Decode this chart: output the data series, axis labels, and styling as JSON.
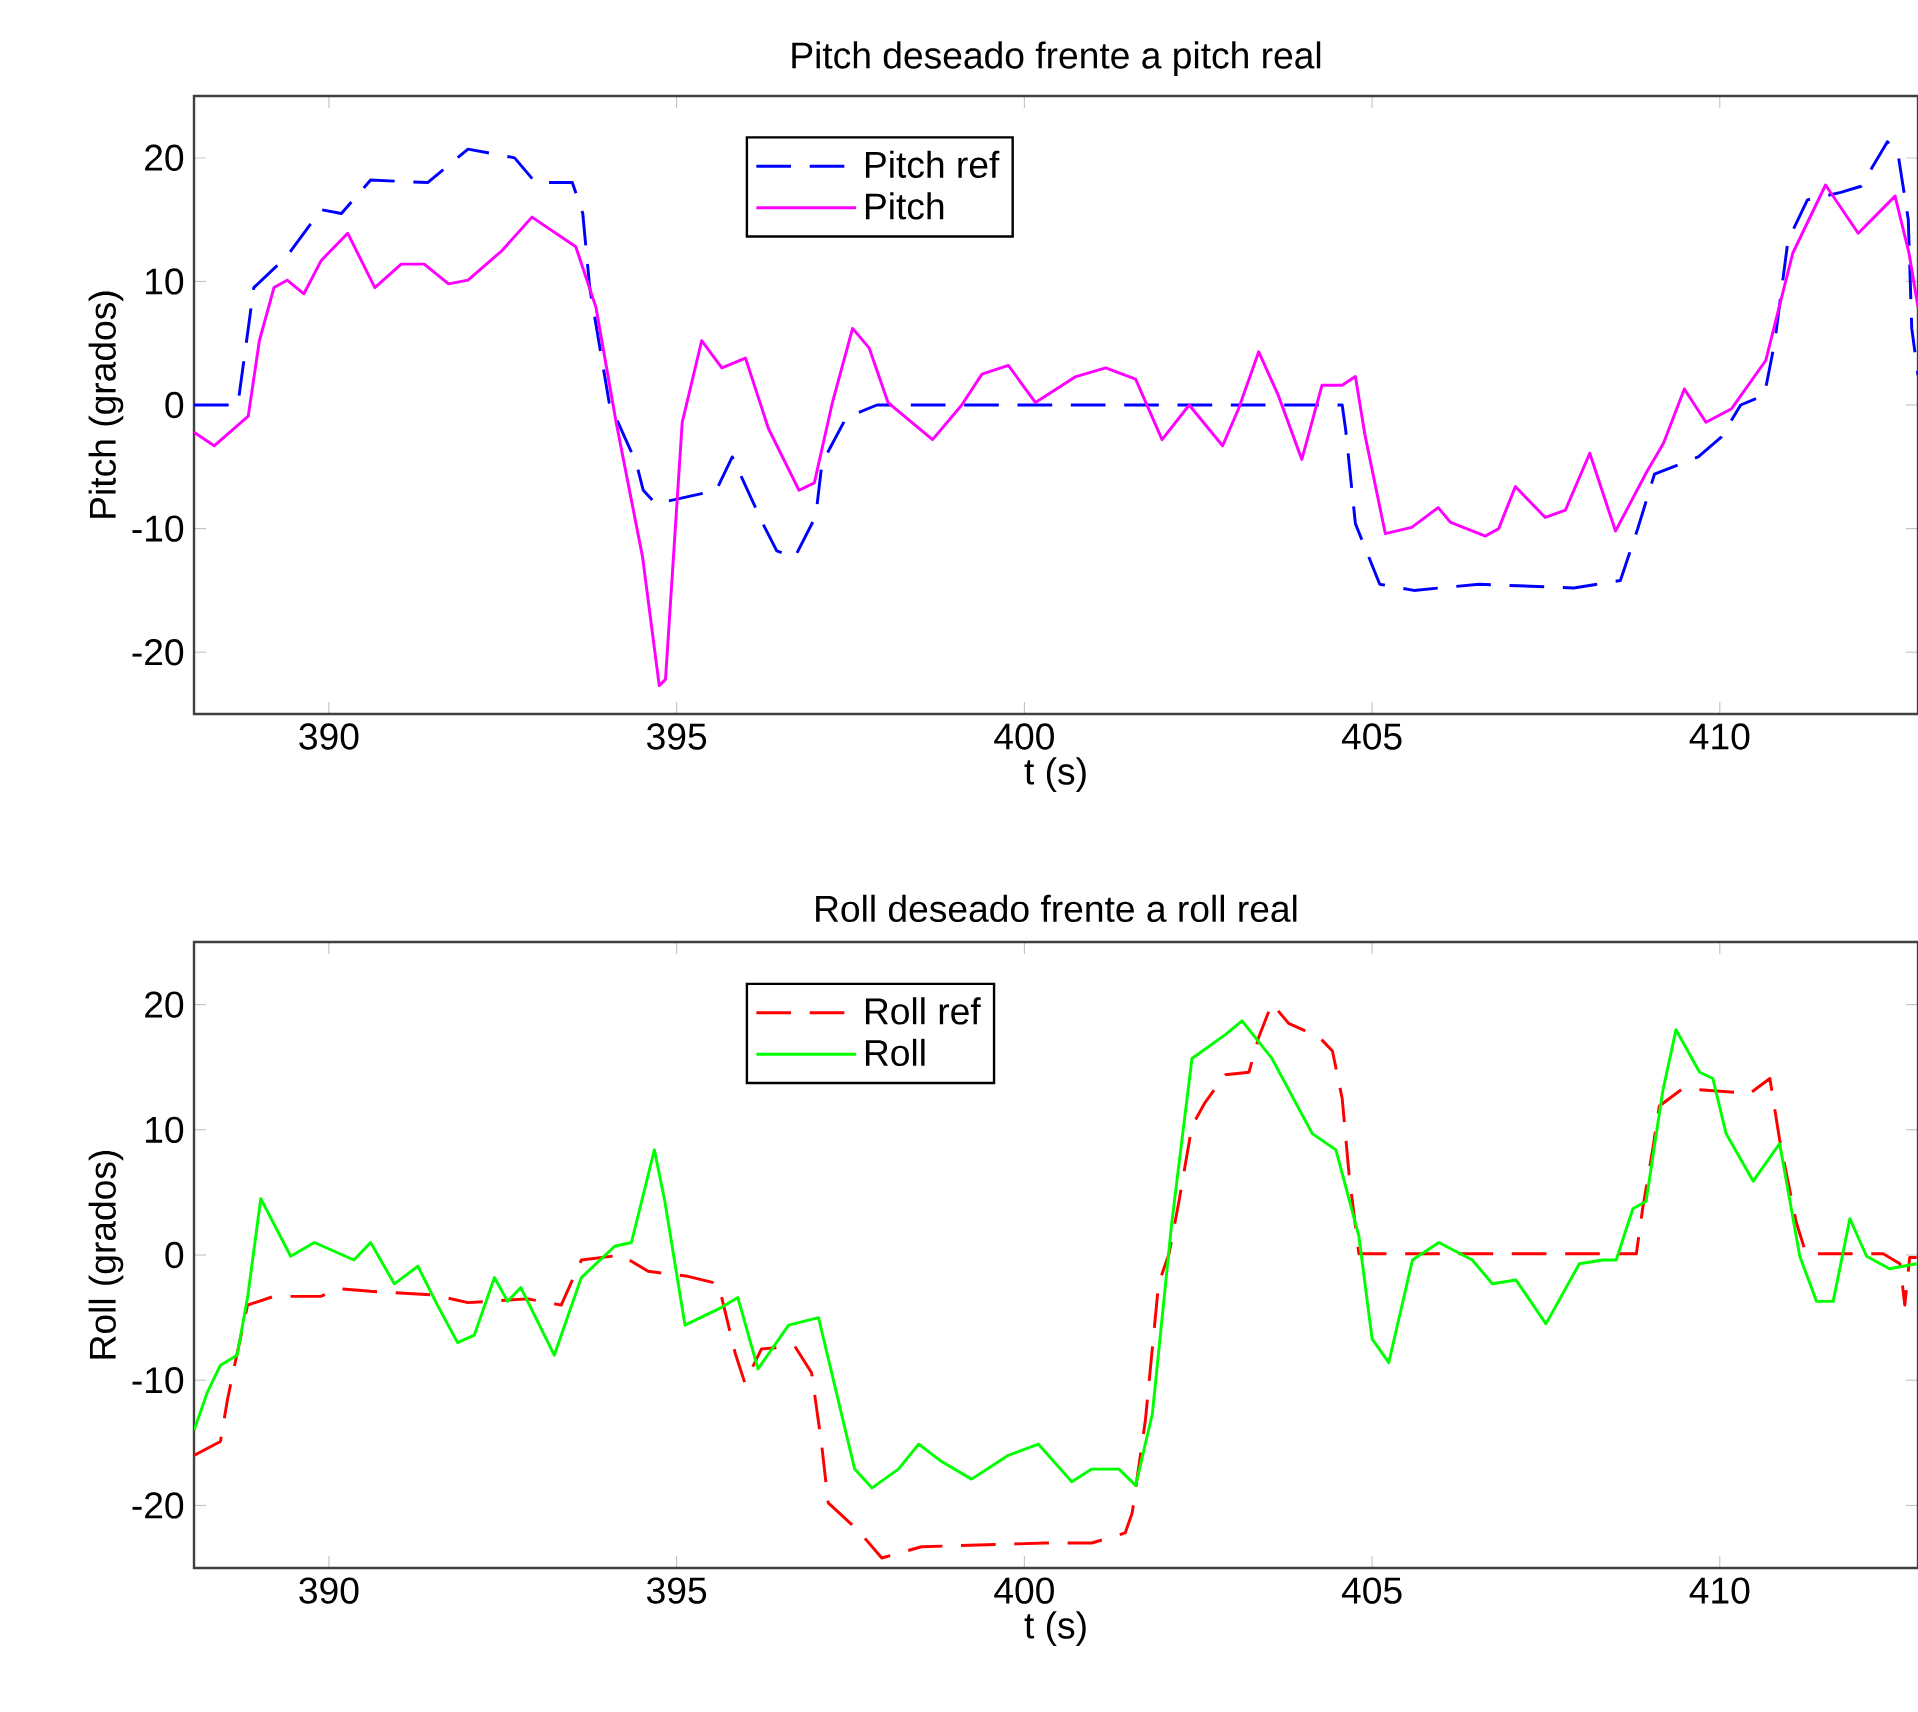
{
  "chart_data": [
    {
      "type": "line",
      "title": "Pitch deseado frente a pitch real",
      "xlabel": "t (s)",
      "ylabel": "Pitch (grados)",
      "xlim": [
        388.06,
        412.85
      ],
      "ylim": [
        -25,
        25
      ],
      "xticks": [
        390,
        395,
        400,
        405,
        410
      ],
      "yticks": [
        -20,
        -10,
        0,
        10,
        20
      ],
      "grid": false,
      "legend": "top",
      "series": [
        {
          "name": "Pitch ref",
          "color": "#0000ff",
          "line_style": "dashed",
          "x": [
            388.06,
            388.69,
            388.92,
            389.39,
            389.89,
            390.18,
            390.6,
            391.42,
            392.0,
            392.67,
            392.97,
            393.5,
            393.65,
            393.75,
            394.03,
            394.42,
            394.52,
            394.7,
            395.57,
            395.8,
            396.24,
            396.44,
            396.7,
            397.0,
            397.09,
            397.44,
            397.88,
            404.57,
            404.62,
            404.76,
            405.11,
            405.6,
            406.54,
            407.9,
            408.57,
            408.82,
            409.06,
            409.69,
            410.02,
            410.3,
            410.64,
            410.79,
            410.98,
            411.26,
            411.74,
            412.03,
            412.41,
            412.56,
            412.71,
            412.76,
            412.85
          ],
          "values": [
            0,
            0,
            9.5,
            12,
            15.8,
            15.5,
            18.2,
            18,
            20.7,
            20,
            18,
            18,
            15.5,
            9.5,
            0.2,
            -4.7,
            -6.9,
            -8,
            -6.9,
            -4.2,
            -9.6,
            -11.8,
            -12.3,
            -9,
            -4.7,
            -1,
            0,
            0,
            -2,
            -9.6,
            -14.5,
            -15,
            -14.5,
            -14.8,
            -14.2,
            -10,
            -5.6,
            -4.2,
            -2.6,
            0,
            0.8,
            5.1,
            13.3,
            16.6,
            17.2,
            17.7,
            21.3,
            20.4,
            15,
            6.2,
            2.4
          ]
        },
        {
          "name": "Pitch",
          "color": "#ff00ff",
          "line_style": "solid",
          "x": [
            388.06,
            388.35,
            388.84,
            389.0,
            389.21,
            389.4,
            389.64,
            389.89,
            390.27,
            390.66,
            391.04,
            391.37,
            391.72,
            392.0,
            392.49,
            392.92,
            393.55,
            393.84,
            394.13,
            394.51,
            394.75,
            394.84,
            395.08,
            395.36,
            395.65,
            395.99,
            396.32,
            396.76,
            396.98,
            397.24,
            397.53,
            397.77,
            398.04,
            398.68,
            399.1,
            399.39,
            399.77,
            400.16,
            400.74,
            401.17,
            401.6,
            401.98,
            402.37,
            402.85,
            403.08,
            403.37,
            403.65,
            403.99,
            404.28,
            404.57,
            404.76,
            404.9,
            405.19,
            405.57,
            405.95,
            406.13,
            406.63,
            406.82,
            407.06,
            407.49,
            407.78,
            408.13,
            408.5,
            408.95,
            409.19,
            409.49,
            409.8,
            410.17,
            410.66,
            411.05,
            411.52,
            411.99,
            412.52,
            412.72,
            412.85
          ],
          "values": [
            -2.2,
            -3.3,
            -0.9,
            5.2,
            9.5,
            10.1,
            9,
            11.7,
            13.9,
            9.5,
            11.4,
            11.4,
            9.8,
            10.1,
            12.5,
            15.2,
            12.8,
            7.9,
            -1.4,
            -12.3,
            -22.7,
            -22.2,
            -1.4,
            5.2,
            3,
            3.8,
            -1.9,
            -6.9,
            -6.3,
            0.2,
            6.2,
            4.6,
            0.2,
            -2.8,
            0,
            2.5,
            3.2,
            0.2,
            2.3,
            3,
            2.1,
            -2.8,
            0,
            -3.3,
            -0.3,
            4.3,
            0.8,
            -4.4,
            1.6,
            1.6,
            2.3,
            -2.5,
            -10.4,
            -9.9,
            -8.3,
            -9.5,
            -10.6,
            -10,
            -6.6,
            -9.1,
            -8.5,
            -3.9,
            -10.2,
            -5.4,
            -3.1,
            1.3,
            -1.4,
            -0.3,
            3.6,
            12.3,
            17.8,
            13.9,
            16.9,
            12.3,
            7.9
          ]
        }
      ]
    },
    {
      "type": "line",
      "title": "Roll deseado frente a roll real",
      "xlabel": "t (s)",
      "ylabel": "Roll (grados)",
      "xlim": [
        388.06,
        412.85
      ],
      "ylim": [
        -25,
        25
      ],
      "xticks": [
        390,
        395,
        400,
        405,
        410
      ],
      "yticks": [
        -20,
        -10,
        0,
        10,
        20
      ],
      "grid": false,
      "legend": "top",
      "series": [
        {
          "name": "Roll ref",
          "color": "#ff0000",
          "line_style": "dashed",
          "x": [
            388.06,
            388.44,
            388.54,
            388.64,
            388.83,
            389.21,
            389.88,
            390.17,
            390.6,
            391.52,
            392.0,
            392.86,
            393.34,
            393.63,
            394.2,
            394.59,
            395.16,
            395.6,
            395.84,
            395.98,
            396.22,
            396.7,
            396.94,
            397.08,
            397.18,
            397.61,
            397.95,
            398.52,
            400.3,
            400.97,
            401.45,
            401.55,
            401.74,
            401.93,
            402.08,
            402.22,
            402.41,
            402.6,
            402.89,
            403.23,
            403.37,
            403.56,
            403.8,
            404.24,
            404.43,
            404.57,
            404.67,
            404.81,
            408.8,
            408.89,
            409.04,
            409.13,
            409.47,
            410.43,
            410.72,
            410.86,
            411.1,
            411.24,
            412.35,
            412.59,
            412.66,
            412.73,
            412.83
          ],
          "values": [
            -16,
            -14.9,
            -11.6,
            -8.9,
            -4,
            -3.3,
            -3.3,
            -2.7,
            -2.9,
            -3.2,
            -3.8,
            -3.5,
            -4,
            -0.4,
            0,
            -1.3,
            -1.7,
            -2.3,
            -7.8,
            -10.2,
            -7.5,
            -7.3,
            -9.4,
            -14.9,
            -19.8,
            -22,
            -24.2,
            -23.3,
            -23,
            -23,
            -22.2,
            -20.6,
            -13.2,
            -2.3,
            0.1,
            4.2,
            10.3,
            12.2,
            14.4,
            14.6,
            17.4,
            20.1,
            18.5,
            17.4,
            16.3,
            12.5,
            6.4,
            0.1,
            0.1,
            3.7,
            8.6,
            11.9,
            13.3,
            12.9,
            14.1,
            9.2,
            2.6,
            0.1,
            0.1,
            -0.7,
            -4,
            -0.2,
            -0.2
          ]
        },
        {
          "name": "Roll",
          "color": "#00ff00",
          "line_style": "solid",
          "x": [
            388.06,
            388.25,
            388.44,
            388.68,
            388.83,
            389.02,
            389.45,
            389.79,
            390.36,
            390.6,
            390.94,
            391.28,
            391.56,
            391.85,
            392.09,
            392.38,
            392.57,
            392.76,
            393.24,
            393.63,
            394.11,
            394.35,
            394.68,
            394.83,
            395.12,
            395.64,
            395.88,
            396.17,
            396.61,
            397.04,
            397.56,
            397.81,
            398.19,
            398.48,
            398.81,
            399.24,
            399.77,
            400.2,
            400.68,
            400.97,
            401.36,
            401.6,
            401.84,
            402.12,
            402.41,
            402.89,
            403.13,
            403.56,
            404.14,
            404.48,
            404.81,
            405.0,
            405.24,
            405.58,
            405.96,
            406.44,
            406.73,
            407.07,
            407.5,
            407.98,
            408.32,
            408.51,
            408.75,
            408.94,
            409.18,
            409.37,
            409.71,
            409.9,
            410.09,
            410.48,
            410.86,
            411.15,
            411.39,
            411.63,
            411.87,
            412.11,
            412.44,
            412.83
          ],
          "values": [
            -14,
            -11,
            -8.8,
            -8,
            -3.4,
            4.5,
            -0.1,
            1,
            -0.4,
            1,
            -2.3,
            -0.9,
            -4,
            -7,
            -6.4,
            -1.8,
            -3.7,
            -2.6,
            -8,
            -1.8,
            0.7,
            1,
            8.4,
            4.3,
            -5.6,
            -4.2,
            -3.4,
            -9.1,
            -5.6,
            -5,
            -17.1,
            -18.6,
            -17.1,
            -15.1,
            -16.5,
            -17.9,
            -16,
            -15.1,
            -18.1,
            -17.1,
            -17.1,
            -18.4,
            -12.7,
            2.6,
            15.7,
            17.6,
            18.7,
            15.7,
            9.7,
            8.4,
            1.5,
            -6.7,
            -8.6,
            -0.4,
            1,
            -0.4,
            -2.3,
            -2,
            -5.5,
            -0.7,
            -0.4,
            -0.4,
            3.7,
            4.3,
            13.1,
            18,
            14.6,
            14.1,
            9.7,
            5.9,
            8.9,
            -0.1,
            -3.7,
            -3.7,
            2.9,
            -0.1,
            -1.1,
            -0.7
          ]
        }
      ]
    }
  ]
}
